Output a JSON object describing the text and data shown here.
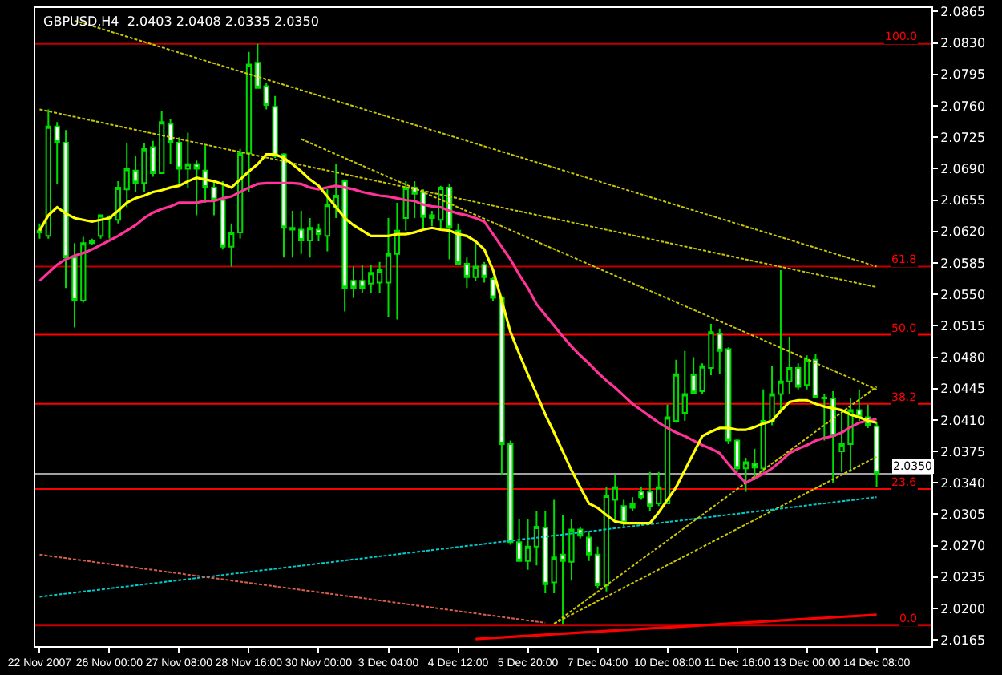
{
  "chart_data": {
    "type": "candlestick",
    "title": "GBPUSD,H4  2.0403 2.0408 2.0335 2.0350",
    "categories": [
      "22 Nov 2007",
      null,
      null,
      null,
      null,
      null,
      null,
      null,
      "26 Nov 00:00",
      null,
      null,
      null,
      null,
      null,
      null,
      null,
      "27 Nov 08:00",
      null,
      null,
      null,
      null,
      null,
      null,
      null,
      "28 Nov 16:00",
      null,
      null,
      null,
      null,
      null,
      null,
      null,
      "30 Nov 00:00",
      null,
      null,
      null,
      null,
      null,
      null,
      null,
      "3 Dec 04:00",
      null,
      null,
      null,
      null,
      null,
      null,
      null,
      "4 Dec 12:00",
      null,
      null,
      null,
      null,
      null,
      null,
      null,
      "5 Dec 20:00",
      null,
      null,
      null,
      null,
      null,
      null,
      null,
      "7 Dec 04:00",
      null,
      null,
      null,
      null,
      null,
      null,
      null,
      "10 Dec 08:00",
      null,
      null,
      null,
      null,
      null,
      null,
      null,
      "11 Dec 16:00",
      null,
      null,
      null,
      null,
      null,
      null,
      null,
      "13 Dec 00:00",
      null,
      null,
      null,
      null,
      null,
      null,
      null,
      "14 Dec 08:00"
    ],
    "ylim": [
      2.0158,
      2.0869
    ],
    "yticks": [
      2.0865,
      {
        "value": 2.083,
        "label": "2.0830"
      },
      2.0795,
      {
        "value": 2.076,
        "label": "2.0760"
      },
      2.0725,
      {
        "value": 2.069,
        "label": "2.0690"
      },
      2.0655,
      {
        "value": 2.062,
        "label": "2.0620"
      },
      2.0585,
      {
        "value": 2.055,
        "label": "2.0550"
      },
      2.0515,
      {
        "value": 2.048,
        "label": "2.0480"
      },
      2.0445,
      {
        "value": 2.041,
        "label": "2.0410"
      },
      2.0375,
      {
        "value": 2.034,
        "label": "2.0340"
      },
      2.0305,
      {
        "value": 2.027,
        "label": "2.0270"
      },
      2.0235,
      {
        "value": 2.02,
        "label": "2.0200"
      },
      2.0165
    ],
    "grid": false,
    "series": [
      {
        "type": "line",
        "color": "#c8c800",
        "line_style": "dotted",
        "values": [
          2.0756,
          null,
          null,
          null,
          null,
          null,
          null,
          null,
          null,
          null,
          null,
          null,
          null,
          null,
          null,
          null,
          null,
          null,
          null,
          null,
          null,
          null,
          null,
          null,
          null,
          null,
          null,
          null,
          null,
          null,
          null,
          null,
          null,
          null,
          null,
          null,
          null,
          null,
          null,
          null,
          null,
          null,
          null,
          null,
          null,
          null,
          null,
          null,
          null,
          null,
          null,
          null,
          null,
          null,
          null,
          null,
          null,
          null,
          null,
          null,
          null,
          null,
          null,
          null,
          null,
          null,
          null,
          null,
          null,
          null,
          null,
          null,
          null,
          null,
          null,
          null,
          null,
          null,
          null,
          null,
          null,
          null,
          null,
          null,
          null,
          null,
          null,
          null,
          null,
          null,
          null,
          null,
          null,
          null,
          null,
          null,
          2.0558
        ]
      },
      {
        "type": "line",
        "color": "#c8c800",
        "line_style": "dotted",
        "values": [
          null,
          null,
          null,
          null,
          2.0855,
          null,
          null,
          null,
          null,
          null,
          null,
          null,
          null,
          null,
          null,
          null,
          null,
          null,
          null,
          null,
          null,
          null,
          null,
          null,
          null,
          null,
          null,
          null,
          null,
          null,
          null,
          null,
          null,
          null,
          null,
          null,
          null,
          null,
          null,
          null,
          null,
          null,
          null,
          null,
          null,
          null,
          null,
          null,
          null,
          null,
          null,
          null,
          null,
          null,
          null,
          null,
          null,
          null,
          null,
          null,
          null,
          null,
          null,
          null,
          null,
          null,
          null,
          null,
          null,
          null,
          null,
          null,
          null,
          null,
          null,
          null,
          null,
          null,
          null,
          null,
          null,
          null,
          null,
          null,
          null,
          null,
          null,
          null,
          null,
          null,
          null,
          null,
          null,
          null,
          null,
          null,
          2.0581
        ]
      },
      {
        "type": "line",
        "color": "#c8c800",
        "line_style": "dotted",
        "values": [
          null,
          null,
          null,
          null,
          null,
          null,
          null,
          null,
          null,
          null,
          null,
          null,
          null,
          null,
          null,
          null,
          null,
          null,
          null,
          null,
          null,
          null,
          null,
          null,
          null,
          null,
          null,
          null,
          null,
          null,
          2.0723,
          null,
          null,
          null,
          null,
          null,
          null,
          null,
          null,
          null,
          null,
          null,
          null,
          null,
          null,
          null,
          null,
          null,
          null,
          null,
          null,
          null,
          null,
          null,
          null,
          null,
          null,
          null,
          null,
          null,
          null,
          null,
          null,
          null,
          null,
          null,
          null,
          null,
          null,
          null,
          null,
          null,
          null,
          null,
          null,
          null,
          null,
          null,
          null,
          null,
          null,
          null,
          null,
          null,
          null,
          null,
          null,
          null,
          null,
          null,
          null,
          null,
          null,
          null,
          null,
          null,
          2.0444
        ]
      },
      {
        "type": "line",
        "color": "#c8c800",
        "line_style": "dotted",
        "values": [
          null,
          null,
          null,
          null,
          null,
          null,
          null,
          null,
          null,
          null,
          null,
          null,
          null,
          null,
          null,
          null,
          null,
          null,
          null,
          null,
          null,
          null,
          null,
          null,
          null,
          null,
          null,
          null,
          null,
          null,
          null,
          null,
          null,
          null,
          null,
          null,
          null,
          null,
          null,
          null,
          null,
          null,
          null,
          null,
          null,
          null,
          null,
          null,
          null,
          null,
          null,
          null,
          null,
          null,
          null,
          null,
          null,
          null,
          null,
          2.0183,
          null,
          null,
          null,
          null,
          null,
          null,
          null,
          null,
          null,
          null,
          null,
          null,
          null,
          null,
          null,
          null,
          null,
          null,
          null,
          null,
          null,
          null,
          null,
          null,
          null,
          null,
          null,
          null,
          null,
          null,
          null,
          null,
          null,
          null,
          null,
          null,
          2.0447
        ]
      },
      {
        "type": "line",
        "color": "#c8c800",
        "line_style": "dotted",
        "values": [
          null,
          null,
          null,
          null,
          null,
          null,
          null,
          null,
          null,
          null,
          null,
          null,
          null,
          null,
          null,
          null,
          null,
          null,
          null,
          null,
          null,
          null,
          null,
          null,
          null,
          null,
          null,
          null,
          null,
          null,
          null,
          null,
          null,
          null,
          null,
          null,
          null,
          null,
          null,
          null,
          null,
          null,
          null,
          null,
          null,
          null,
          null,
          null,
          null,
          null,
          null,
          null,
          null,
          null,
          null,
          null,
          null,
          null,
          null,
          2.0183,
          null,
          null,
          null,
          null,
          null,
          null,
          null,
          null,
          null,
          null,
          null,
          null,
          null,
          null,
          null,
          null,
          null,
          null,
          null,
          null,
          null,
          null,
          null,
          null,
          null,
          null,
          null,
          null,
          null,
          null,
          null,
          null,
          null,
          null,
          null,
          null,
          2.0369
        ]
      },
      {
        "type": "line",
        "color": "#00cccc",
        "line_style": "dotted",
        "values": [
          2.0213,
          null,
          null,
          null,
          null,
          null,
          null,
          null,
          null,
          null,
          null,
          null,
          null,
          null,
          null,
          null,
          null,
          null,
          null,
          null,
          null,
          null,
          null,
          null,
          null,
          null,
          null,
          null,
          null,
          null,
          null,
          null,
          null,
          null,
          null,
          null,
          null,
          null,
          null,
          null,
          null,
          null,
          null,
          null,
          null,
          null,
          null,
          null,
          null,
          null,
          null,
          null,
          null,
          null,
          null,
          null,
          null,
          null,
          null,
          null,
          null,
          null,
          null,
          null,
          null,
          null,
          null,
          null,
          null,
          null,
          null,
          null,
          null,
          null,
          null,
          null,
          null,
          null,
          null,
          null,
          null,
          null,
          null,
          null,
          null,
          null,
          null,
          null,
          null,
          null,
          null,
          null,
          null,
          null,
          null,
          null,
          2.0324
        ]
      },
      {
        "type": "line",
        "color": "#d8604a",
        "line_style": "dotted",
        "values": [
          2.026,
          null,
          null,
          null,
          null,
          null,
          null,
          null,
          null,
          null,
          null,
          null,
          null,
          null,
          null,
          null,
          null,
          null,
          null,
          null,
          null,
          null,
          null,
          null,
          null,
          null,
          null,
          null,
          null,
          null,
          null,
          null,
          null,
          null,
          null,
          null,
          null,
          null,
          null,
          null,
          null,
          null,
          null,
          null,
          null,
          null,
          null,
          null,
          null,
          null,
          null,
          null,
          null,
          null,
          null,
          null,
          null,
          null,
          2.0184,
          null,
          null,
          null,
          null,
          null,
          null,
          null,
          null,
          null,
          null,
          null,
          null,
          null,
          null,
          null,
          null,
          null,
          null,
          null,
          null,
          null,
          null,
          null,
          null,
          null,
          null,
          null,
          null,
          null,
          null,
          null,
          null,
          null,
          null,
          null,
          null,
          null,
          null
        ]
      },
      {
        "type": "line",
        "color": "#ff0000",
        "line_style": "solid",
        "values": [
          null,
          null,
          null,
          null,
          null,
          null,
          null,
          null,
          null,
          null,
          null,
          null,
          null,
          null,
          null,
          null,
          null,
          null,
          null,
          null,
          null,
          null,
          null,
          null,
          null,
          null,
          null,
          null,
          null,
          null,
          null,
          null,
          null,
          null,
          null,
          null,
          null,
          null,
          null,
          null,
          null,
          null,
          null,
          null,
          null,
          null,
          null,
          null,
          null,
          null,
          2.0166,
          null,
          null,
          null,
          null,
          null,
          null,
          null,
          null,
          null,
          null,
          null,
          null,
          null,
          null,
          null,
          null,
          null,
          null,
          null,
          null,
          null,
          null,
          null,
          null,
          null,
          null,
          null,
          null,
          null,
          null,
          null,
          null,
          null,
          null,
          null,
          null,
          null,
          null,
          null,
          null,
          null,
          null,
          null,
          null,
          null,
          2.0193
        ]
      },
      {
        "type": "line",
        "color": "#ff3399",
        "line_style": "solid",
        "values": [
          2.0565,
          2.0574,
          2.0583,
          2.0589,
          2.0593,
          2.0596,
          2.06,
          2.0605,
          2.061,
          2.0615,
          2.0621,
          2.0627,
          2.0635,
          2.0641,
          2.0645,
          2.0648,
          2.0652,
          2.0652,
          2.0652,
          2.0654,
          2.0654,
          2.0657,
          2.0659,
          2.0664,
          2.0669,
          2.0673,
          2.0674,
          2.0674,
          2.0674,
          2.0674,
          2.0673,
          2.0669,
          2.0667,
          2.0669,
          2.0671,
          2.0669,
          2.0667,
          2.0664,
          2.0662,
          2.066,
          2.0659,
          2.0657,
          2.0655,
          2.0654,
          2.065,
          2.0648,
          2.0647,
          2.0643,
          2.064,
          2.0638,
          2.0635,
          2.0631,
          2.0617,
          2.0603,
          2.0589,
          2.0572,
          2.0557,
          2.0539,
          2.0527,
          2.0515,
          2.0503,
          2.0492,
          2.0482,
          2.0473,
          2.0463,
          2.0454,
          2.0446,
          2.0437,
          2.0428,
          2.0421,
          2.0414,
          2.0407,
          2.0401,
          2.0396,
          2.0392,
          2.0387,
          2.0382,
          2.0378,
          2.0373,
          2.0361,
          2.035,
          2.034,
          2.0345,
          2.035,
          2.0356,
          2.0364,
          2.0373,
          2.0378,
          2.0382,
          2.0387,
          2.039,
          2.0392,
          2.0396,
          2.0402,
          2.0407,
          2.0409,
          2.0411
        ]
      },
      {
        "type": "line",
        "color": "#ffff00",
        "line_style": "solid",
        "values": [
          2.0621,
          2.0638,
          2.0647,
          2.064,
          2.0635,
          2.0633,
          2.0631,
          2.0633,
          2.0635,
          2.0643,
          2.0652,
          2.0657,
          2.066,
          2.0664,
          2.0666,
          2.0669,
          2.0671,
          2.0676,
          2.068,
          2.0678,
          2.0676,
          2.0673,
          2.0669,
          2.0678,
          2.0687,
          2.0695,
          2.0706,
          2.0706,
          2.0702,
          2.0695,
          2.0687,
          2.0678,
          2.0671,
          2.0659,
          2.0647,
          2.0635,
          2.0627,
          2.0621,
          2.0615,
          2.0615,
          2.0615,
          2.0617,
          2.0617,
          2.0619,
          2.0622,
          2.0624,
          2.0622,
          2.0621,
          2.0617,
          2.0615,
          2.0609,
          2.06,
          2.0577,
          2.0543,
          2.0508,
          2.0484,
          2.0461,
          2.0439,
          2.0416,
          2.0396,
          2.0375,
          2.0354,
          2.0335,
          2.0317,
          2.0312,
          2.0304,
          2.0297,
          2.0295,
          2.0295,
          2.0295,
          2.0295,
          2.0307,
          2.0321,
          2.0335,
          2.0354,
          2.0373,
          2.0392,
          2.0397,
          2.0401,
          2.0401,
          2.0399,
          2.0399,
          2.0402,
          2.0406,
          2.0409,
          2.042,
          2.043,
          2.0432,
          2.0432,
          2.0428,
          2.0425,
          2.0423,
          2.0421,
          2.0416,
          2.0413,
          2.0409,
          2.0407
        ]
      },
      {
        "color": "#00dd00",
        "ohlc": [
          [
            2.0619,
            2.0629,
            2.0612,
            2.0621
          ],
          [
            2.0615,
            2.0756,
            2.0612,
            2.0737
          ],
          [
            2.0737,
            2.0742,
            2.0673,
            2.0719
          ],
          [
            2.0719,
            2.0733,
            2.0557,
            2.0591
          ],
          [
            2.0591,
            2.0607,
            2.0513,
            2.0543
          ],
          [
            2.0543,
            2.0614,
            2.0541,
            2.0607
          ],
          [
            2.0609,
            2.0612,
            2.0605,
            2.0607
          ],
          [
            2.0615,
            2.0638,
            2.0612,
            2.0638
          ],
          [
            2.0636,
            2.0638,
            2.0612,
            2.0635
          ],
          [
            2.0633,
            2.0676,
            2.0629,
            2.0669
          ],
          [
            2.0667,
            2.0719,
            2.0647,
            2.069
          ],
          [
            2.0688,
            2.0704,
            2.0664,
            2.0674
          ],
          [
            2.0674,
            2.0719,
            2.0664,
            2.0712
          ],
          [
            2.0714,
            2.0721,
            2.0681,
            2.0685
          ],
          [
            2.0685,
            2.0754,
            2.0685,
            2.0742
          ],
          [
            2.074,
            2.0745,
            2.0695,
            2.0719
          ],
          [
            2.0719,
            2.0725,
            2.0673,
            2.069
          ],
          [
            2.069,
            2.073,
            2.0669,
            2.0695
          ],
          [
            2.0695,
            2.0699,
            2.0638,
            2.069
          ],
          [
            2.0688,
            2.0716,
            2.0652,
            2.0669
          ],
          [
            2.0669,
            2.0676,
            2.0638,
            2.0655
          ],
          [
            2.0655,
            2.0676,
            2.06,
            2.0603
          ],
          [
            2.0603,
            2.0629,
            2.0581,
            2.0619
          ],
          [
            2.0619,
            2.0712,
            2.0612,
            2.0707
          ],
          [
            2.0707,
            2.082,
            2.0664,
            2.0806
          ],
          [
            2.0808,
            2.0829,
            2.078,
            2.078
          ],
          [
            2.0782,
            2.0785,
            2.0756,
            2.0761
          ],
          [
            2.0759,
            2.0771,
            2.0702,
            2.0704
          ],
          [
            2.0706,
            2.0707,
            2.0591,
            2.0624
          ],
          [
            2.0624,
            2.0643,
            2.0591,
            2.0622
          ],
          [
            2.0622,
            2.0643,
            2.0595,
            2.061
          ],
          [
            2.061,
            2.0635,
            2.0591,
            2.0624
          ],
          [
            2.0622,
            2.0629,
            2.0609,
            2.0617
          ],
          [
            2.0615,
            2.0667,
            2.0598,
            2.065
          ],
          [
            2.0647,
            2.0695,
            2.0635,
            2.066
          ],
          [
            2.0676,
            2.0678,
            2.0531,
            2.0557
          ],
          [
            2.0565,
            2.0581,
            2.0546,
            2.0557
          ],
          [
            2.0565,
            2.0583,
            2.0551,
            2.0557
          ],
          [
            2.0562,
            2.0583,
            2.0551,
            2.0574
          ],
          [
            2.0563,
            2.0586,
            2.0551,
            2.0577
          ],
          [
            2.0563,
            2.0635,
            2.0525,
            2.0595
          ],
          [
            2.0595,
            2.0652,
            2.0522,
            2.0621
          ],
          [
            2.0635,
            2.0676,
            2.0621,
            2.0669
          ],
          [
            2.0669,
            2.0676,
            2.0635,
            2.0662
          ],
          [
            2.0664,
            2.0667,
            2.0624,
            2.0636
          ],
          [
            2.0638,
            2.0643,
            2.0626,
            2.0635
          ],
          [
            2.0633,
            2.0671,
            2.0624,
            2.0669
          ],
          [
            2.0669,
            2.0673,
            2.0589,
            2.0624
          ],
          [
            2.0621,
            2.0629,
            2.0583,
            2.0584
          ],
          [
            2.0584,
            2.0591,
            2.0557,
            2.0569
          ],
          [
            2.0569,
            2.0607,
            2.0565,
            2.0581
          ],
          [
            2.0583,
            2.0586,
            2.0563,
            2.0569
          ],
          [
            2.0567,
            2.0569,
            2.0543,
            2.0546
          ],
          [
            2.0546,
            2.0548,
            2.0349,
            2.0383
          ],
          [
            2.0383,
            2.0387,
            2.0271,
            2.0274
          ],
          [
            2.0274,
            2.03,
            2.0252,
            2.0253
          ],
          [
            2.0253,
            2.03,
            2.0243,
            2.0269
          ],
          [
            2.0269,
            2.0309,
            2.0248,
            2.0291
          ],
          [
            2.029,
            2.0309,
            2.0217,
            2.0227
          ],
          [
            2.0229,
            2.0321,
            2.0217,
            2.0257
          ],
          [
            2.026,
            2.0304,
            2.0182,
            2.0253
          ],
          [
            2.0252,
            2.03,
            2.0231,
            2.0288
          ],
          [
            2.0288,
            2.0291,
            2.0278,
            2.0281
          ],
          [
            2.0279,
            2.0286,
            2.0253,
            2.026
          ],
          [
            2.026,
            2.0269,
            2.0222,
            2.0226
          ],
          [
            2.0226,
            2.0335,
            2.0219,
            2.0326
          ],
          [
            2.0321,
            2.0349,
            2.03,
            2.0335
          ],
          [
            2.0314,
            2.0321,
            2.0291,
            2.0295
          ],
          [
            2.0312,
            2.0324,
            2.0309,
            2.0316
          ],
          [
            2.033,
            2.0335,
            2.0321,
            2.0324
          ],
          [
            2.033,
            2.0352,
            2.0309,
            2.0314
          ],
          [
            2.0317,
            2.0352,
            2.0314,
            2.0335
          ],
          [
            2.0317,
            2.0427,
            2.0317,
            2.0413
          ],
          [
            2.0409,
            2.0477,
            2.0407,
            2.0461
          ],
          [
            2.0418,
            2.0487,
            2.0409,
            2.0439
          ],
          [
            2.046,
            2.048,
            2.0439,
            2.044
          ],
          [
            2.0442,
            2.0473,
            2.0439,
            2.047
          ],
          [
            2.0468,
            2.0517,
            2.046,
            2.0508
          ],
          [
            2.0506,
            2.0512,
            2.0461,
            2.0487
          ],
          [
            2.0489,
            2.0491,
            2.0383,
            2.0387
          ],
          [
            2.0387,
            2.0389,
            2.0352,
            2.0356
          ],
          [
            2.0356,
            2.0368,
            2.033,
            2.0363
          ],
          [
            2.0361,
            2.0378,
            2.0343,
            2.0357
          ],
          [
            2.0356,
            2.0444,
            2.0352,
            2.0409
          ],
          [
            2.0409,
            2.047,
            2.0404,
            2.0439
          ],
          [
            2.0439,
            2.0577,
            2.0421,
            2.0453
          ],
          [
            2.0453,
            2.0503,
            2.0439,
            2.0468
          ],
          [
            2.0468,
            2.0473,
            2.0444,
            2.0447
          ],
          [
            2.0449,
            2.0482,
            2.0444,
            2.0477
          ],
          [
            2.0477,
            2.0484,
            2.0434,
            2.0435
          ],
          [
            2.0435,
            2.0439,
            2.0387,
            2.0434
          ],
          [
            2.0434,
            2.0442,
            2.034,
            2.0392
          ],
          [
            2.0375,
            2.0421,
            2.0352,
            2.0383
          ],
          [
            2.0383,
            2.0434,
            2.0352,
            2.0421
          ],
          [
            2.0421,
            2.0444,
            2.0409,
            2.0413
          ],
          [
            2.0413,
            2.0427,
            2.0401,
            2.0404
          ],
          [
            2.0403,
            2.0408,
            2.0335,
            2.035
          ]
        ]
      }
    ],
    "ref_lines": [
      {
        "axis": "y",
        "value": 2.0829,
        "color": "#c00000"
      },
      {
        "axis": "y",
        "value": 2.0581,
        "color": "#c00000"
      },
      {
        "axis": "y",
        "value": 2.0505,
        "color": "#ff0000"
      },
      {
        "axis": "y",
        "value": 2.0428,
        "color": "#ff0000"
      },
      {
        "axis": "y",
        "value": 2.035,
        "label": "2.0350",
        "color": "#a0a0a0"
      },
      {
        "axis": "y",
        "value": 2.0333,
        "color": "#ff0000"
      },
      {
        "axis": "y",
        "value": 2.0181,
        "color": "#c00000"
      }
    ],
    "annotations": [
      {
        "text": "100.0",
        "y": 2.0829
      },
      {
        "text": "61.8",
        "y": 2.0581
      },
      {
        "text": "50.0",
        "y": 2.0505
      },
      {
        "text": "38.2",
        "y": 2.0428
      },
      {
        "text": "23.6",
        "y": 2.0333
      },
      {
        "text": "0.0",
        "y": 2.0181
      }
    ]
  }
}
